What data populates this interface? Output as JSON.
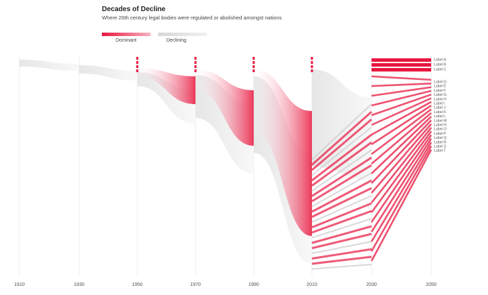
{
  "chart_data": {
    "type": "area",
    "title": "Decades of Decline",
    "subtitle": "Where 20th century legal bodies were regulated or abolished amongst nations",
    "legend": [
      {
        "label": "Dominant",
        "color": "#e8173f"
      },
      {
        "label": "Declining",
        "color": "#d6d6d6"
      }
    ],
    "x_ticks": [
      "1910",
      "1930",
      "1950",
      "1970",
      "1990",
      "2010",
      "2030",
      "2050"
    ],
    "series_right_labels": [
      "Label A",
      "Label B",
      "Label C",
      "Label D",
      "Label E",
      "Label F",
      "Label G",
      "Label H",
      "Label I",
      "Label J",
      "Label K",
      "Label L",
      "Label M",
      "Label N",
      "Label O",
      "Label P",
      "Label Q",
      "Label R",
      "Label S",
      "Label T"
    ],
    "grid": true,
    "legend_position": "top-left"
  }
}
